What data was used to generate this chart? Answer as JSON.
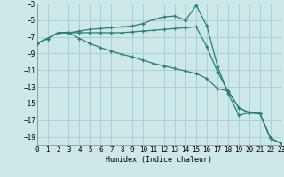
{
  "x": [
    0,
    1,
    2,
    3,
    4,
    5,
    6,
    7,
    8,
    9,
    10,
    11,
    12,
    13,
    14,
    15,
    16,
    17,
    18,
    19,
    20,
    21,
    22,
    23
  ],
  "line1": [
    -7.8,
    -7.2,
    -6.5,
    -6.5,
    -6.3,
    -6.1,
    -6.0,
    -5.9,
    -5.8,
    -5.7,
    -5.4,
    -4.9,
    -4.6,
    -4.5,
    -5.0,
    -3.2,
    -5.7,
    -10.5,
    -13.8,
    -16.4,
    -16.1,
    -16.2,
    -19.2,
    -19.8
  ],
  "line2": [
    -7.8,
    -7.2,
    -6.5,
    -6.5,
    -6.5,
    -6.5,
    -6.5,
    -6.5,
    -6.5,
    -6.4,
    -6.3,
    -6.2,
    -6.1,
    -6.0,
    -5.9,
    -5.8,
    -8.2,
    -11.2,
    -13.5,
    -15.5,
    -16.1,
    -16.2,
    -19.2,
    -19.8
  ],
  "line3": [
    -7.8,
    -7.2,
    -6.5,
    -6.5,
    -7.2,
    -7.8,
    -8.3,
    -8.7,
    -9.1,
    -9.4,
    -9.8,
    -10.2,
    -10.5,
    -10.8,
    -11.1,
    -11.4,
    -12.0,
    -13.2,
    -13.5,
    -15.5,
    -16.1,
    -16.2,
    -19.2,
    -19.8
  ],
  "bg_color": "#cce8e8",
  "grid_color": "#aad0d0",
  "line_color": "#2e7d6e",
  "xlabel": "Humidex (Indice chaleur)",
  "ylim": [
    -20,
    -3
  ],
  "xlim": [
    0,
    23
  ],
  "yticks": [
    -3,
    -5,
    -7,
    -9,
    -11,
    -13,
    -15,
    -17,
    -19
  ],
  "xticks": [
    0,
    1,
    2,
    3,
    4,
    5,
    6,
    7,
    8,
    9,
    10,
    11,
    12,
    13,
    14,
    15,
    16,
    17,
    18,
    19,
    20,
    21,
    22,
    23
  ]
}
